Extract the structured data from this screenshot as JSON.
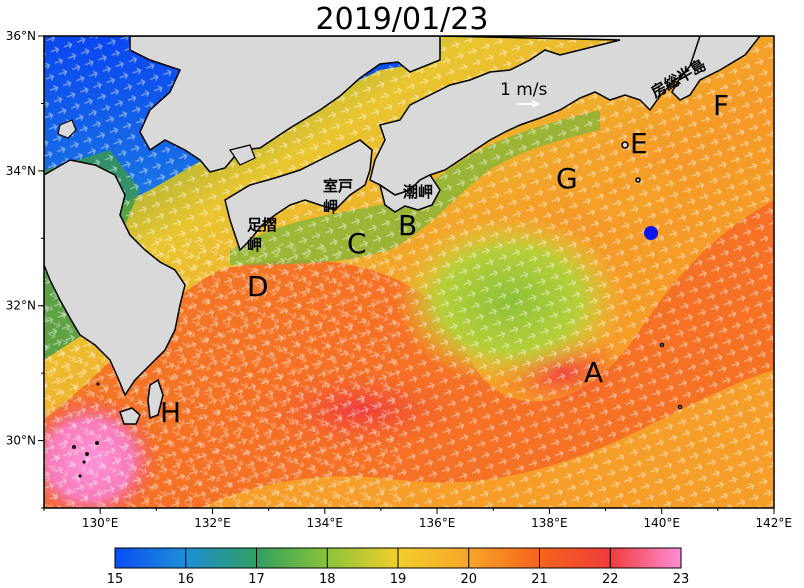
{
  "title": "2019/01/23",
  "map": {
    "lon_ticks": [
      "130°E",
      "132°E",
      "134°E",
      "136°E",
      "138°E",
      "140°E",
      "142°E"
    ],
    "lat_ticks": [
      "36°N",
      "34°N",
      "32°N",
      "30°N"
    ],
    "region_labels": [
      {
        "text": "A",
        "name": "region-a-label"
      },
      {
        "text": "B",
        "name": "region-b-label"
      },
      {
        "text": "C",
        "name": "region-c-label"
      },
      {
        "text": "D",
        "name": "region-d-label"
      },
      {
        "text": "E",
        "name": "region-e-label"
      },
      {
        "text": "F",
        "name": "region-f-label"
      },
      {
        "text": "G",
        "name": "region-g-label"
      },
      {
        "text": "H",
        "name": "region-h-label"
      }
    ],
    "place_labels": {
      "muroto": "室戸岬",
      "ashizuri": "足摺岬",
      "shionomisaki": "潮岬",
      "boso": "房総半島"
    },
    "scale_label": "1 m/s",
    "marker_color": "#0a14f0"
  },
  "colorbar": {
    "ticks": [
      "15",
      "16",
      "17",
      "18",
      "19",
      "20",
      "21",
      "22",
      "23"
    ],
    "colors": [
      "#0a4ef5",
      "#1e8fd6",
      "#2fa060",
      "#8cc33a",
      "#f2cf2c",
      "#f7a52a",
      "#f6641c",
      "#f03c3c",
      "#ff8ed6"
    ]
  }
}
